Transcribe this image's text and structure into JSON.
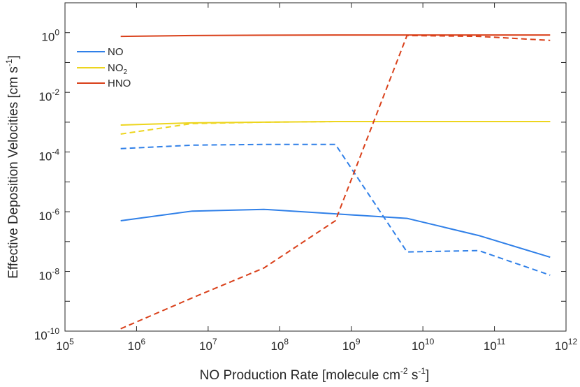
{
  "chart_data": {
    "type": "line",
    "xscale": "log",
    "yscale": "log",
    "xlim": [
      100000,
      1000000000000
    ],
    "ylim": [
      1e-10,
      10
    ],
    "xlabel": "NO Production Rate [molecule cm^-2 s^-1]",
    "xlabel_parts": {
      "pre": "NO Production Rate [molecule cm",
      "exp1": "-2",
      "mid": " s",
      "exp2": "-1",
      "post": "]"
    },
    "ylabel": "Effective Deposition Velocities [cm s^-1]",
    "ylabel_parts": {
      "pre": "Effective Deposition Velocities [cm s",
      "exp": "-1",
      "post": "]"
    },
    "x_ticks": [
      {
        "value": 100000,
        "base": "10",
        "exp": "5"
      },
      {
        "value": 1000000,
        "base": "10",
        "exp": "6"
      },
      {
        "value": 10000000,
        "base": "10",
        "exp": "7"
      },
      {
        "value": 100000000,
        "base": "10",
        "exp": "8"
      },
      {
        "value": 1000000000,
        "base": "10",
        "exp": "9"
      },
      {
        "value": 10000000000,
        "base": "10",
        "exp": "10"
      },
      {
        "value": 100000000000,
        "base": "10",
        "exp": "11"
      },
      {
        "value": 1000000000000,
        "base": "10",
        "exp": "12"
      }
    ],
    "y_ticks": [
      {
        "value": 1,
        "base": "10",
        "exp": "0"
      },
      {
        "value": 0.01,
        "base": "10",
        "exp": "-2"
      },
      {
        "value": 0.0001,
        "base": "10",
        "exp": "-4"
      },
      {
        "value": 1e-06,
        "base": "10",
        "exp": "-6"
      },
      {
        "value": 1e-08,
        "base": "10",
        "exp": "-8"
      },
      {
        "value": 1e-10,
        "base": "10",
        "exp": "-10"
      }
    ],
    "legend": {
      "placement": "top-left",
      "entries": [
        {
          "label": "NO",
          "sub": "",
          "color": "#3080E8"
        },
        {
          "label": "NO",
          "sub": "2",
          "color": "#EDD51E"
        },
        {
          "label": "HNO",
          "sub": "",
          "color": "#D9401A"
        }
      ]
    },
    "series": [
      {
        "name": "NO (solid)",
        "color": "#3080E8",
        "dash": false,
        "x": [
          600000,
          6000000,
          60000000,
          600000000,
          6000000000,
          60000000000,
          600000000000
        ],
        "y": [
          5e-07,
          1.05e-06,
          1.2e-06,
          8.5e-07,
          6e-07,
          1.6e-07,
          3e-08
        ]
      },
      {
        "name": "NO (dashed)",
        "color": "#3080E8",
        "dash": true,
        "x": [
          600000,
          6000000,
          60000000,
          600000000,
          6000000000,
          60000000000,
          600000000000
        ],
        "y": [
          0.00013,
          0.00017,
          0.00018,
          0.00018,
          4.5e-08,
          5e-08,
          7.5e-09
        ]
      },
      {
        "name": "NO2 (solid)",
        "color": "#EDD51E",
        "dash": false,
        "x": [
          600000,
          6000000,
          60000000,
          600000000,
          6000000000,
          60000000000,
          600000000000
        ],
        "y": [
          0.0008,
          0.00095,
          0.001,
          0.00105,
          0.00105,
          0.00105,
          0.00105
        ]
      },
      {
        "name": "NO2 (dashed)",
        "color": "#EDD51E",
        "dash": true,
        "x": [
          600000,
          6000000,
          60000000,
          600000000,
          6000000000,
          60000000000,
          600000000000
        ],
        "y": [
          0.0004,
          0.0009,
          0.001,
          0.00105,
          0.00105,
          0.00105,
          0.00105
        ]
      },
      {
        "name": "HNO (solid)",
        "color": "#D9401A",
        "dash": false,
        "x": [
          600000,
          6000000,
          60000000,
          600000000,
          6000000000,
          60000000000,
          600000000000
        ],
        "y": [
          0.75,
          0.8,
          0.82,
          0.83,
          0.83,
          0.83,
          0.83
        ]
      },
      {
        "name": "HNO (dashed)",
        "color": "#D9401A",
        "dash": true,
        "x": [
          600000,
          6000000,
          60000000,
          600000000,
          6000000000,
          60000000000,
          600000000000
        ],
        "y": [
          1.2e-10,
          1.3e-09,
          1.3e-08,
          5e-07,
          0.8,
          0.75,
          0.55
        ]
      }
    ]
  }
}
